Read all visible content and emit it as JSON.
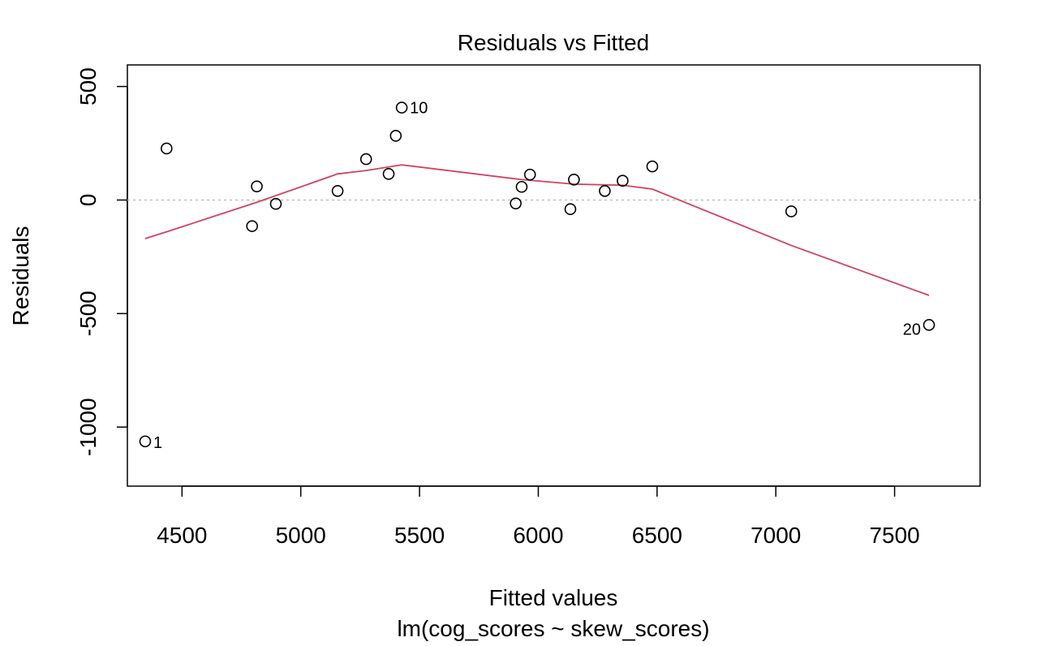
{
  "chart_data": {
    "type": "scatter",
    "title": "Residuals vs Fitted",
    "xlabel": "Fitted values",
    "subtitle": "lm(cog_scores ~ skew_scores)",
    "ylabel": "Residuals",
    "xlim": [
      4270,
      7860
    ],
    "ylim": [
      -1260,
      595
    ],
    "x_ticks": [
      4500,
      5000,
      5500,
      6000,
      6500,
      7000,
      7500
    ],
    "y_ticks": [
      500,
      0,
      -500,
      -1000
    ],
    "grid": false,
    "reference_line_y": 0,
    "points": [
      {
        "x": 4345,
        "y": -1063,
        "label": "1"
      },
      {
        "x": 4435,
        "y": 227,
        "label": ""
      },
      {
        "x": 4795,
        "y": -115,
        "label": ""
      },
      {
        "x": 4815,
        "y": 60,
        "label": ""
      },
      {
        "x": 4895,
        "y": -17,
        "label": ""
      },
      {
        "x": 5155,
        "y": 40,
        "label": ""
      },
      {
        "x": 5275,
        "y": 180,
        "label": ""
      },
      {
        "x": 5370,
        "y": 115,
        "label": ""
      },
      {
        "x": 5400,
        "y": 283,
        "label": ""
      },
      {
        "x": 5425,
        "y": 407,
        "label": "10"
      },
      {
        "x": 5905,
        "y": -15,
        "label": ""
      },
      {
        "x": 5930,
        "y": 58,
        "label": ""
      },
      {
        "x": 5965,
        "y": 112,
        "label": ""
      },
      {
        "x": 6135,
        "y": -40,
        "label": ""
      },
      {
        "x": 6150,
        "y": 90,
        "label": ""
      },
      {
        "x": 6280,
        "y": 40,
        "label": ""
      },
      {
        "x": 6355,
        "y": 85,
        "label": ""
      },
      {
        "x": 6480,
        "y": 148,
        "label": ""
      },
      {
        "x": 7065,
        "y": -50,
        "label": ""
      },
      {
        "x": 7645,
        "y": -550,
        "label": "20"
      }
    ],
    "smooth_line": {
      "color": "#d0435e",
      "x": [
        4345,
        4435,
        4815,
        5155,
        5275,
        5425,
        5930,
        6150,
        6355,
        6480,
        7065,
        7645
      ],
      "y": [
        -170,
        -140,
        -10,
        115,
        130,
        155,
        90,
        70,
        65,
        48,
        -200,
        -420
      ]
    },
    "colors": {
      "point_stroke": "#000000",
      "reference_line": "#bdbdbd",
      "smooth_line": "#d0435e"
    }
  }
}
